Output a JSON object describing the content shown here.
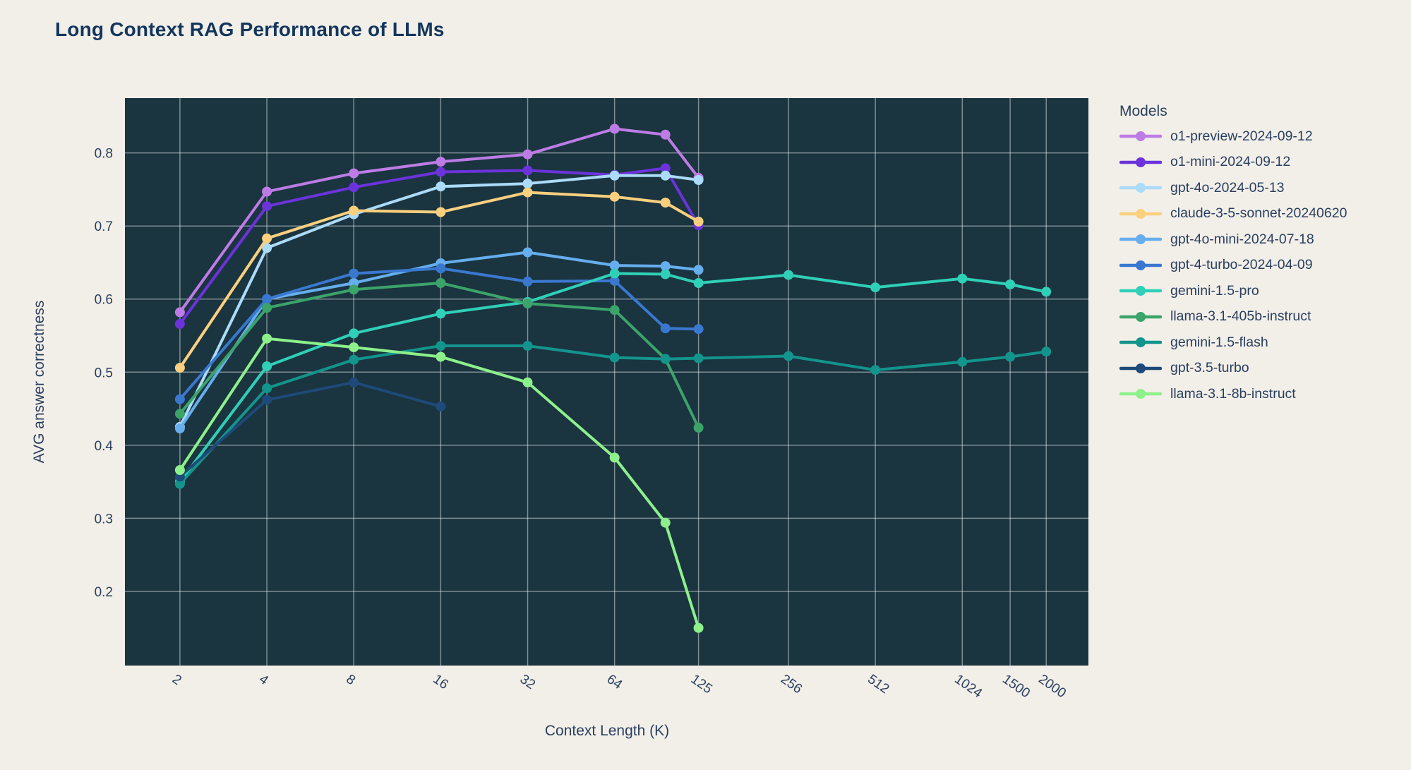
{
  "title": "Long Context RAG Performance of LLMs",
  "legend": {
    "title": "Models"
  },
  "colors": {
    "page_background": "#f2efe9",
    "plot_background": "#1a3440",
    "gridline": "rgba(235,240,243,0.48)",
    "axis_text": "#2a3f5f",
    "title_text": "#14365d"
  },
  "chart_data": {
    "type": "line",
    "title": "Long Context RAG Performance of LLMs",
    "xlabel": "Context Length (K)",
    "ylabel": "AVG answer correctness",
    "x_scale": "log2",
    "xlim": [
      1.29,
      2800
    ],
    "ylim": [
      0.0985,
      0.875
    ],
    "x_ticks": [
      2,
      4,
      8,
      16,
      32,
      64,
      125,
      256,
      512,
      1024,
      1500,
      2000
    ],
    "y_ticks": [
      0.2,
      0.3,
      0.4,
      0.5,
      0.6,
      0.7,
      0.8
    ],
    "grid": true,
    "legend_position": "right",
    "legend_title": "Models",
    "series": [
      {
        "name": "o1-preview-2024-09-12",
        "color": "#bd7ce5",
        "x": [
          2,
          4,
          8,
          16,
          32,
          64,
          96,
          125
        ],
        "y": [
          0.582,
          0.747,
          0.772,
          0.788,
          0.798,
          0.833,
          0.825,
          0.766
        ]
      },
      {
        "name": "o1-mini-2024-09-12",
        "color": "#6c33da",
        "x": [
          2,
          4,
          8,
          16,
          32,
          64,
          96,
          125
        ],
        "y": [
          0.566,
          0.727,
          0.753,
          0.774,
          0.776,
          0.77,
          0.779,
          0.701
        ]
      },
      {
        "name": "gpt-4o-2024-05-13",
        "color": "#abdbf8",
        "x": [
          2,
          4,
          8,
          16,
          32,
          64,
          96,
          125
        ],
        "y": [
          0.425,
          0.67,
          0.716,
          0.754,
          0.758,
          0.769,
          0.769,
          0.763
        ]
      },
      {
        "name": "claude-3-5-sonnet-20240620",
        "color": "#fad07e",
        "x": [
          2,
          4,
          8,
          16,
          32,
          64,
          96,
          125
        ],
        "y": [
          0.506,
          0.683,
          0.721,
          0.719,
          0.746,
          0.74,
          0.732,
          0.706
        ]
      },
      {
        "name": "gpt-4o-mini-2024-07-18",
        "color": "#66aeed",
        "x": [
          2,
          4,
          8,
          16,
          32,
          64,
          96,
          125
        ],
        "y": [
          0.423,
          0.6,
          0.622,
          0.649,
          0.664,
          0.646,
          0.645,
          0.64
        ]
      },
      {
        "name": "gpt-4-turbo-2024-04-09",
        "color": "#3a78d0",
        "x": [
          2,
          4,
          8,
          16,
          32,
          64,
          96,
          125
        ],
        "y": [
          0.463,
          0.6,
          0.635,
          0.642,
          0.624,
          0.625,
          0.56,
          0.559
        ]
      },
      {
        "name": "gemini-1.5-pro",
        "color": "#30cfb7",
        "x": [
          2,
          4,
          8,
          16,
          32,
          64,
          96,
          125,
          256,
          512,
          1024,
          1500,
          2000
        ],
        "y": [
          0.35,
          0.508,
          0.553,
          0.58,
          0.596,
          0.635,
          0.634,
          0.622,
          0.633,
          0.616,
          0.628,
          0.62,
          0.61
        ]
      },
      {
        "name": "llama-3.1-405b-instruct",
        "color": "#3ca36a",
        "x": [
          2,
          4,
          8,
          16,
          32,
          64,
          96,
          125
        ],
        "y": [
          0.443,
          0.588,
          0.613,
          0.622,
          0.594,
          0.585,
          0.518,
          0.424
        ]
      },
      {
        "name": "gemini-1.5-flash",
        "color": "#13948c",
        "x": [
          2,
          4,
          8,
          16,
          32,
          64,
          96,
          125,
          256,
          512,
          1024,
          1500,
          2000
        ],
        "y": [
          0.347,
          0.478,
          0.517,
          0.536,
          0.536,
          0.52,
          0.518,
          0.519,
          0.522,
          0.503,
          0.514,
          0.521,
          0.528
        ]
      },
      {
        "name": "gpt-3.5-turbo",
        "color": "#1d4a78",
        "x": [
          2,
          4,
          8,
          16
        ],
        "y": [
          0.357,
          0.462,
          0.486,
          0.453
        ]
      },
      {
        "name": "llama-3.1-8b-instruct",
        "color": "#8df08b",
        "x": [
          2,
          4,
          8,
          16,
          32,
          64,
          96,
          125
        ],
        "y": [
          0.366,
          0.546,
          0.534,
          0.521,
          0.486,
          0.383,
          0.294,
          0.15
        ]
      }
    ]
  }
}
